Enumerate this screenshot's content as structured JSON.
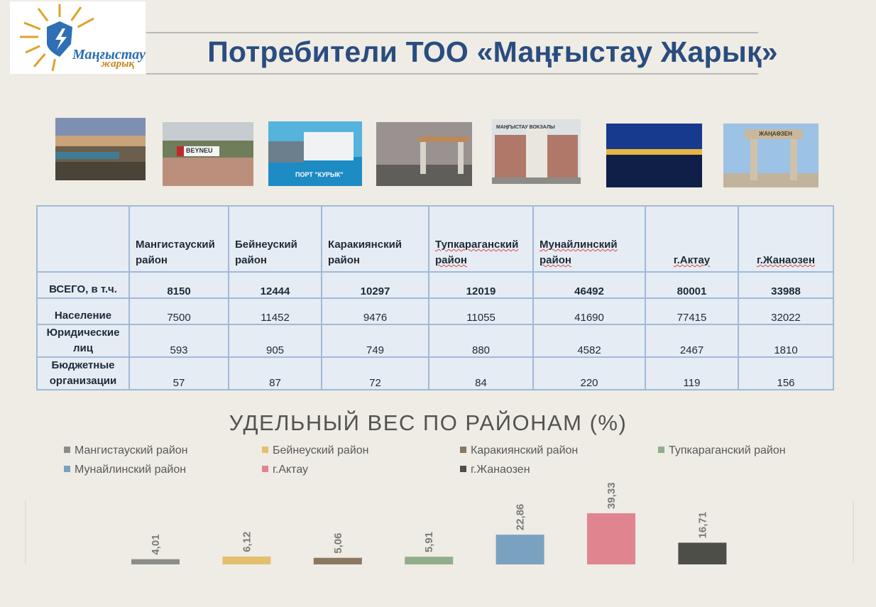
{
  "header": {
    "logo_text_1": "Маңғыстау",
    "logo_text_2": "жарық",
    "title": "Потребители ТОО «Маңғыстау Жарық»"
  },
  "photos": {
    "beyneu_sign": "BEYNEU",
    "port_sign": "ПОРТ \"КУРЫК\"",
    "station_sign": "МАҢҒЫСТАУ ВОКЗАЛЫ",
    "zhanaozen_sign": "ЖАҢАӨЗЕН"
  },
  "table": {
    "columns": [
      "Мангистауский район",
      "Бейнеуский район",
      "Каракиянский район",
      "Тупкараганский район",
      "Мунайлинский район",
      "г.Актау",
      "г.Жанаозен"
    ],
    "rows": [
      {
        "label": "ВСЕГО, в т.ч.",
        "values": [
          "8150",
          "12444",
          "10297",
          "12019",
          "46492",
          "80001",
          "33988"
        ]
      },
      {
        "label": "Население",
        "values": [
          "7500",
          "11452",
          "9476",
          "11055",
          "41690",
          "77415",
          "32022"
        ]
      },
      {
        "label": "Юридические лиц",
        "values": [
          "593",
          "905",
          "749",
          "880",
          "4582",
          "2467",
          "1810"
        ]
      },
      {
        "label": "Бюджетные организации",
        "values": [
          "57",
          "87",
          "72",
          "84",
          "220",
          "119",
          "156"
        ]
      }
    ]
  },
  "chart_data": {
    "type": "bar",
    "title": "УДЕЛЬНЫЙ ВЕС ПО РАЙОНАМ (%)",
    "legend_position": "top",
    "categories": [
      "Мангистауский район",
      "Бейнеуский район",
      "Каракиянский район",
      "Тупкараганский район",
      "Мунайлинский район",
      "г.Актау",
      "г.Жанаозен"
    ],
    "values": [
      4.01,
      6.12,
      5.06,
      5.91,
      22.86,
      39.33,
      16.71
    ],
    "value_labels": [
      "4,01",
      "6,12",
      "5,06",
      "5,91",
      "22,86",
      "39,33",
      "16,71"
    ],
    "colors": [
      "#8c8c88",
      "#e3c06f",
      "#8a7860",
      "#93ad8b",
      "#7aa2c0",
      "#e08590",
      "#4e4e48"
    ],
    "ylim": [
      0,
      40
    ],
    "grid": false
  }
}
